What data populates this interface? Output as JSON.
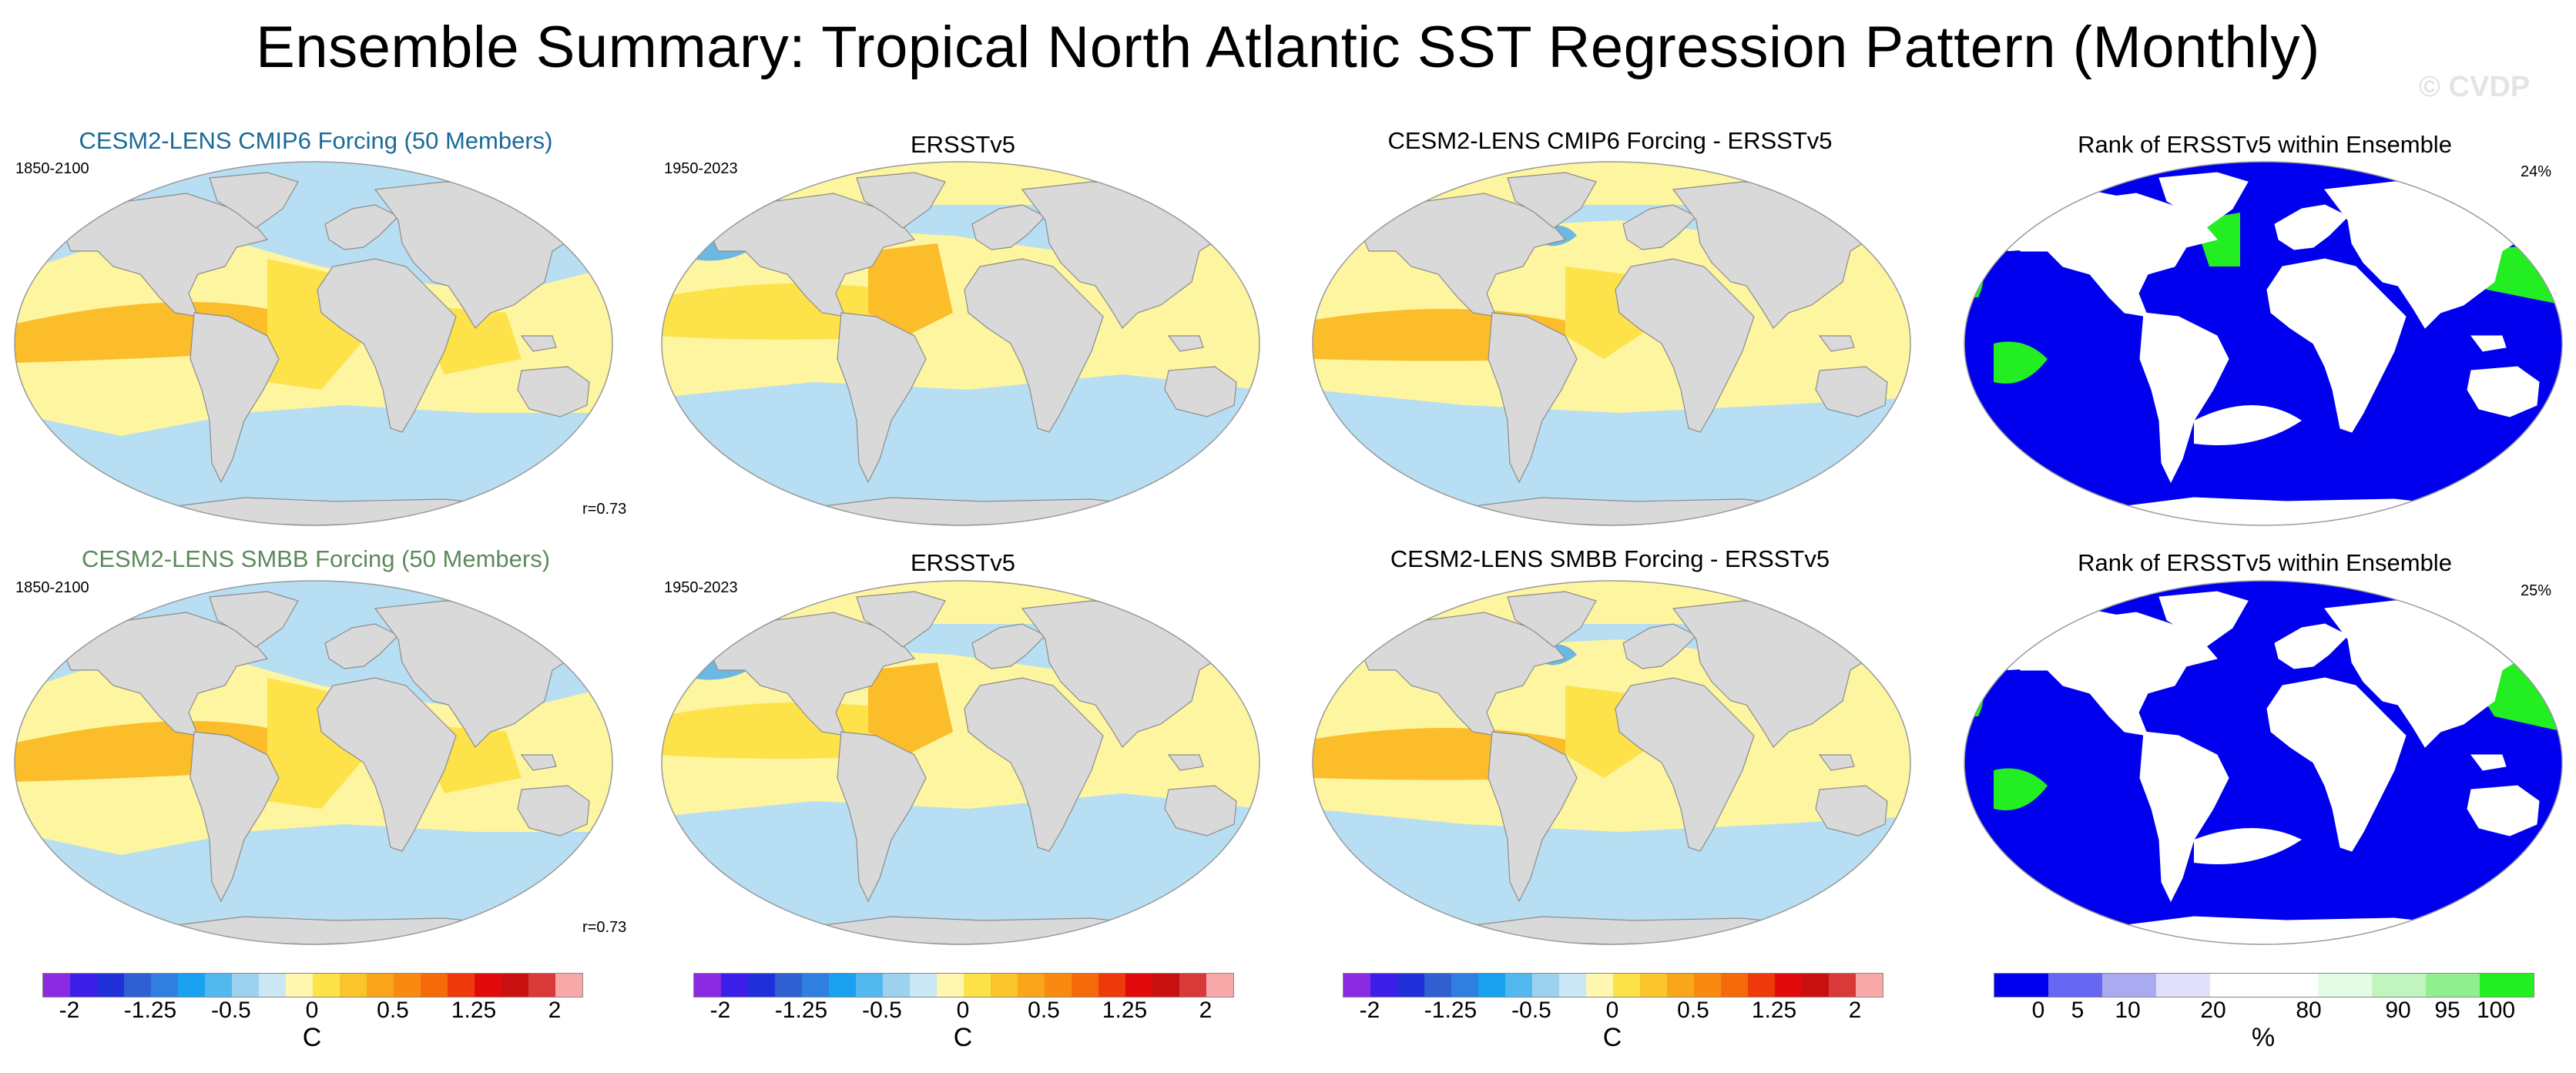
{
  "title": "Ensemble Summary: Tropical North Atlantic SST Regression Pattern (Monthly)",
  "watermark": "© CVDP",
  "colors": {
    "model1_title": "#1a6a98",
    "model2_title": "#5c8a5c",
    "ocean_warm_light": "#fdf5a0",
    "ocean_warm": "#fde24a",
    "ocean_warm_strong": "#fbbd2a",
    "ocean_cool": "#b7def2",
    "ocean_cool_strong": "#6db7e3",
    "land": "#d9d9d9",
    "rank_low": "#0000ee",
    "rank_high": "#22ee22"
  },
  "rows": [
    {
      "model_title": "CESM2-LENS CMIP6 Forcing (50 Members)",
      "model_period": "1850-2100",
      "model_r": "r=0.73",
      "obs_title": "ERSSTv5",
      "obs_period": "1950-2023",
      "diff_title": "CESM2-LENS CMIP6 Forcing - ERSSTv5",
      "rank_title": "Rank of ERSSTv5 within Ensemble",
      "rank_pct": "24%"
    },
    {
      "model_title": "CESM2-LENS SMBB Forcing (50 Members)",
      "model_period": "1850-2100",
      "model_r": "r=0.73",
      "obs_title": "ERSSTv5",
      "obs_period": "1950-2023",
      "diff_title": "CESM2-LENS SMBB Forcing - ERSSTv5",
      "rank_title": "Rank of ERSSTv5 within Ensemble",
      "rank_pct": "25%"
    }
  ],
  "sst_colorbar": {
    "colors": [
      "#8a2be2",
      "#3b1ee8",
      "#2030d8",
      "#2f5fd0",
      "#2f7fe0",
      "#19a0ee",
      "#52b8ee",
      "#9cd2ee",
      "#cbe6f4",
      "#fdf7b0",
      "#fde24a",
      "#fbc42a",
      "#f9a61a",
      "#f88a12",
      "#f56a0a",
      "#ee3a0a",
      "#e00a0a",
      "#c81010",
      "#d83a3a",
      "#f8a8a8"
    ],
    "ticks": [
      "-2",
      "-1.25",
      "-0.5",
      "0",
      "0.5",
      "1.25",
      "2"
    ],
    "unit": "C"
  },
  "rank_colorbar": {
    "colors": [
      "#0000ee",
      "#6666f0",
      "#aaaaf0",
      "#e0e0fa",
      "#ffffff",
      "#ffffff",
      "#e6fbe6",
      "#c0f5c0",
      "#90f090",
      "#22ee22"
    ],
    "ticks": [
      "0",
      "5",
      "10",
      "20",
      "80",
      "90",
      "95",
      "100"
    ],
    "unit": "%"
  }
}
